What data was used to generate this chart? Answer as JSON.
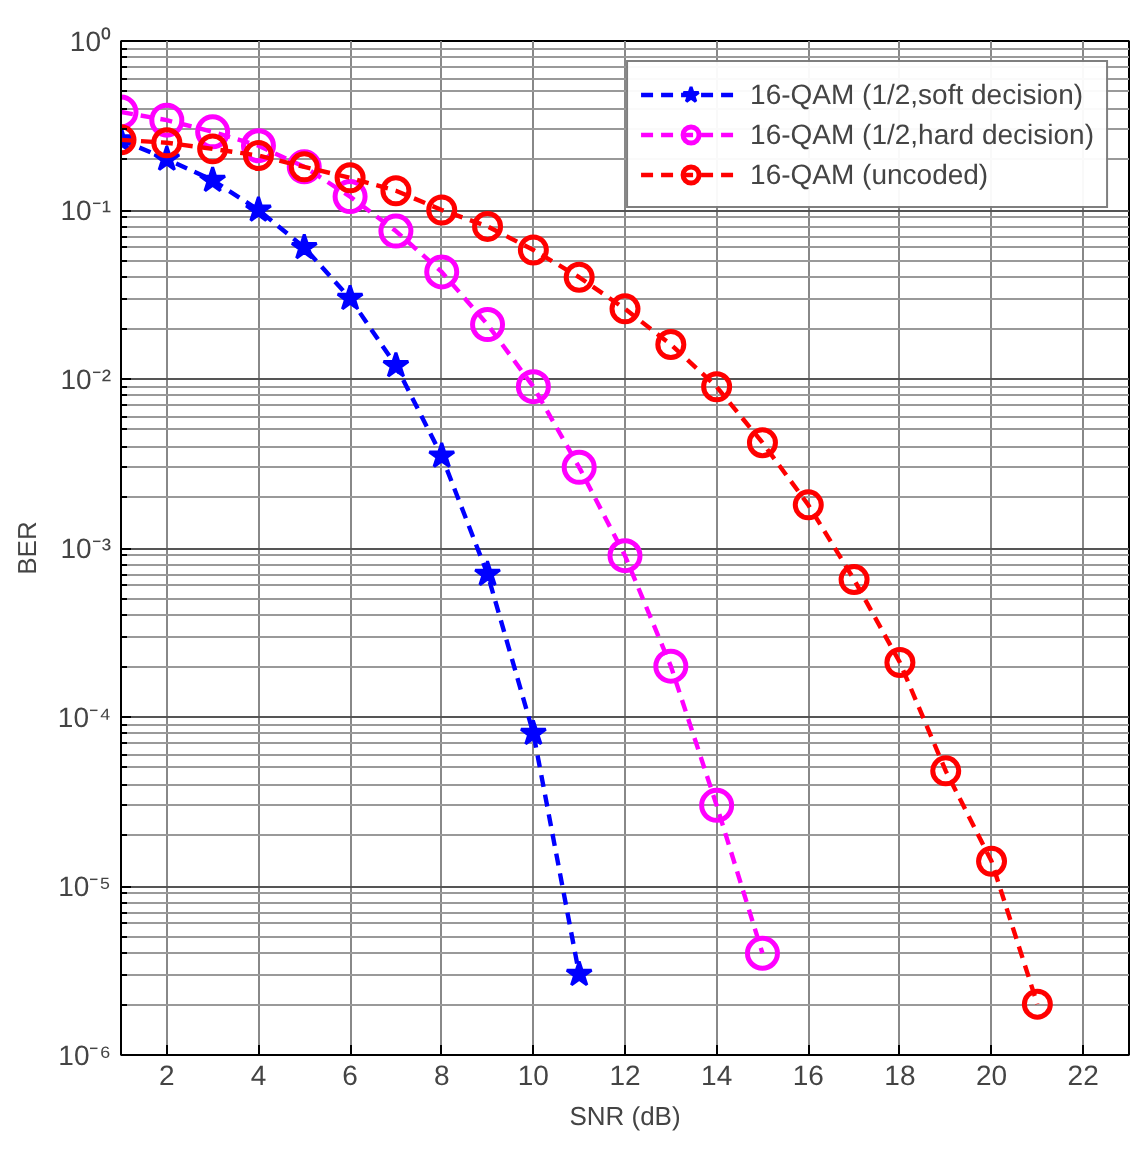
{
  "chart_data": {
    "type": "line",
    "xlabel": "SNR (dB)",
    "ylabel": "BER",
    "log": "y",
    "grid": true,
    "legend": "top right",
    "line_style": "dashed",
    "xlim": [
      1,
      23
    ],
    "xticks": [
      2,
      4,
      6,
      8,
      10,
      12,
      14,
      16,
      18,
      20,
      22
    ],
    "ylim": [
      1e-06,
      1
    ],
    "yticks": [
      {
        "value": 1e-06,
        "label": "10⁻⁶"
      },
      {
        "value": 1e-05,
        "label": "10⁻⁵"
      },
      {
        "value": 0.0001,
        "label": "10⁻⁴"
      },
      {
        "value": 0.001,
        "label": "10⁻³"
      },
      {
        "value": 0.01,
        "label": "10⁻²"
      },
      {
        "value": 0.1,
        "label": "10⁻¹"
      },
      {
        "value": 1,
        "label": "10⁰"
      }
    ],
    "series": [
      {
        "name": "16-QAM (1/2,soft decision)",
        "color": "#0000ff",
        "marker": "star",
        "x": [
          1,
          2,
          3,
          4,
          5,
          6,
          7,
          8,
          9,
          10,
          11
        ],
        "values": [
          0.26,
          0.2,
          0.15,
          0.1,
          0.06,
          0.03,
          0.012,
          0.0035,
          0.0007,
          8e-05,
          3e-06
        ]
      },
      {
        "name": "16-QAM (1/2,hard decision)",
        "color": "#ff00ff",
        "marker": "circle",
        "x": [
          1,
          2,
          3,
          4,
          5,
          6,
          7,
          8,
          9,
          10,
          11,
          12,
          13,
          14,
          15
        ],
        "values": [
          0.38,
          0.34,
          0.29,
          0.24,
          0.18,
          0.12,
          0.075,
          0.043,
          0.021,
          0.009,
          0.003,
          0.0009,
          0.0002,
          3e-05,
          4e-06
        ]
      },
      {
        "name": "16-QAM (uncoded)",
        "color": "#ff0000",
        "marker": "circle",
        "x": [
          1,
          2,
          3,
          4,
          5,
          6,
          7,
          8,
          9,
          10,
          11,
          12,
          13,
          14,
          15,
          16,
          17,
          18,
          19,
          20,
          21
        ],
        "values": [
          0.26,
          0.25,
          0.23,
          0.21,
          0.18,
          0.155,
          0.13,
          0.1,
          0.08,
          0.058,
          0.04,
          0.026,
          0.016,
          0.009,
          0.0042,
          0.0018,
          0.00065,
          0.00021,
          4.8e-05,
          1.4e-05,
          2e-06
        ]
      }
    ]
  }
}
